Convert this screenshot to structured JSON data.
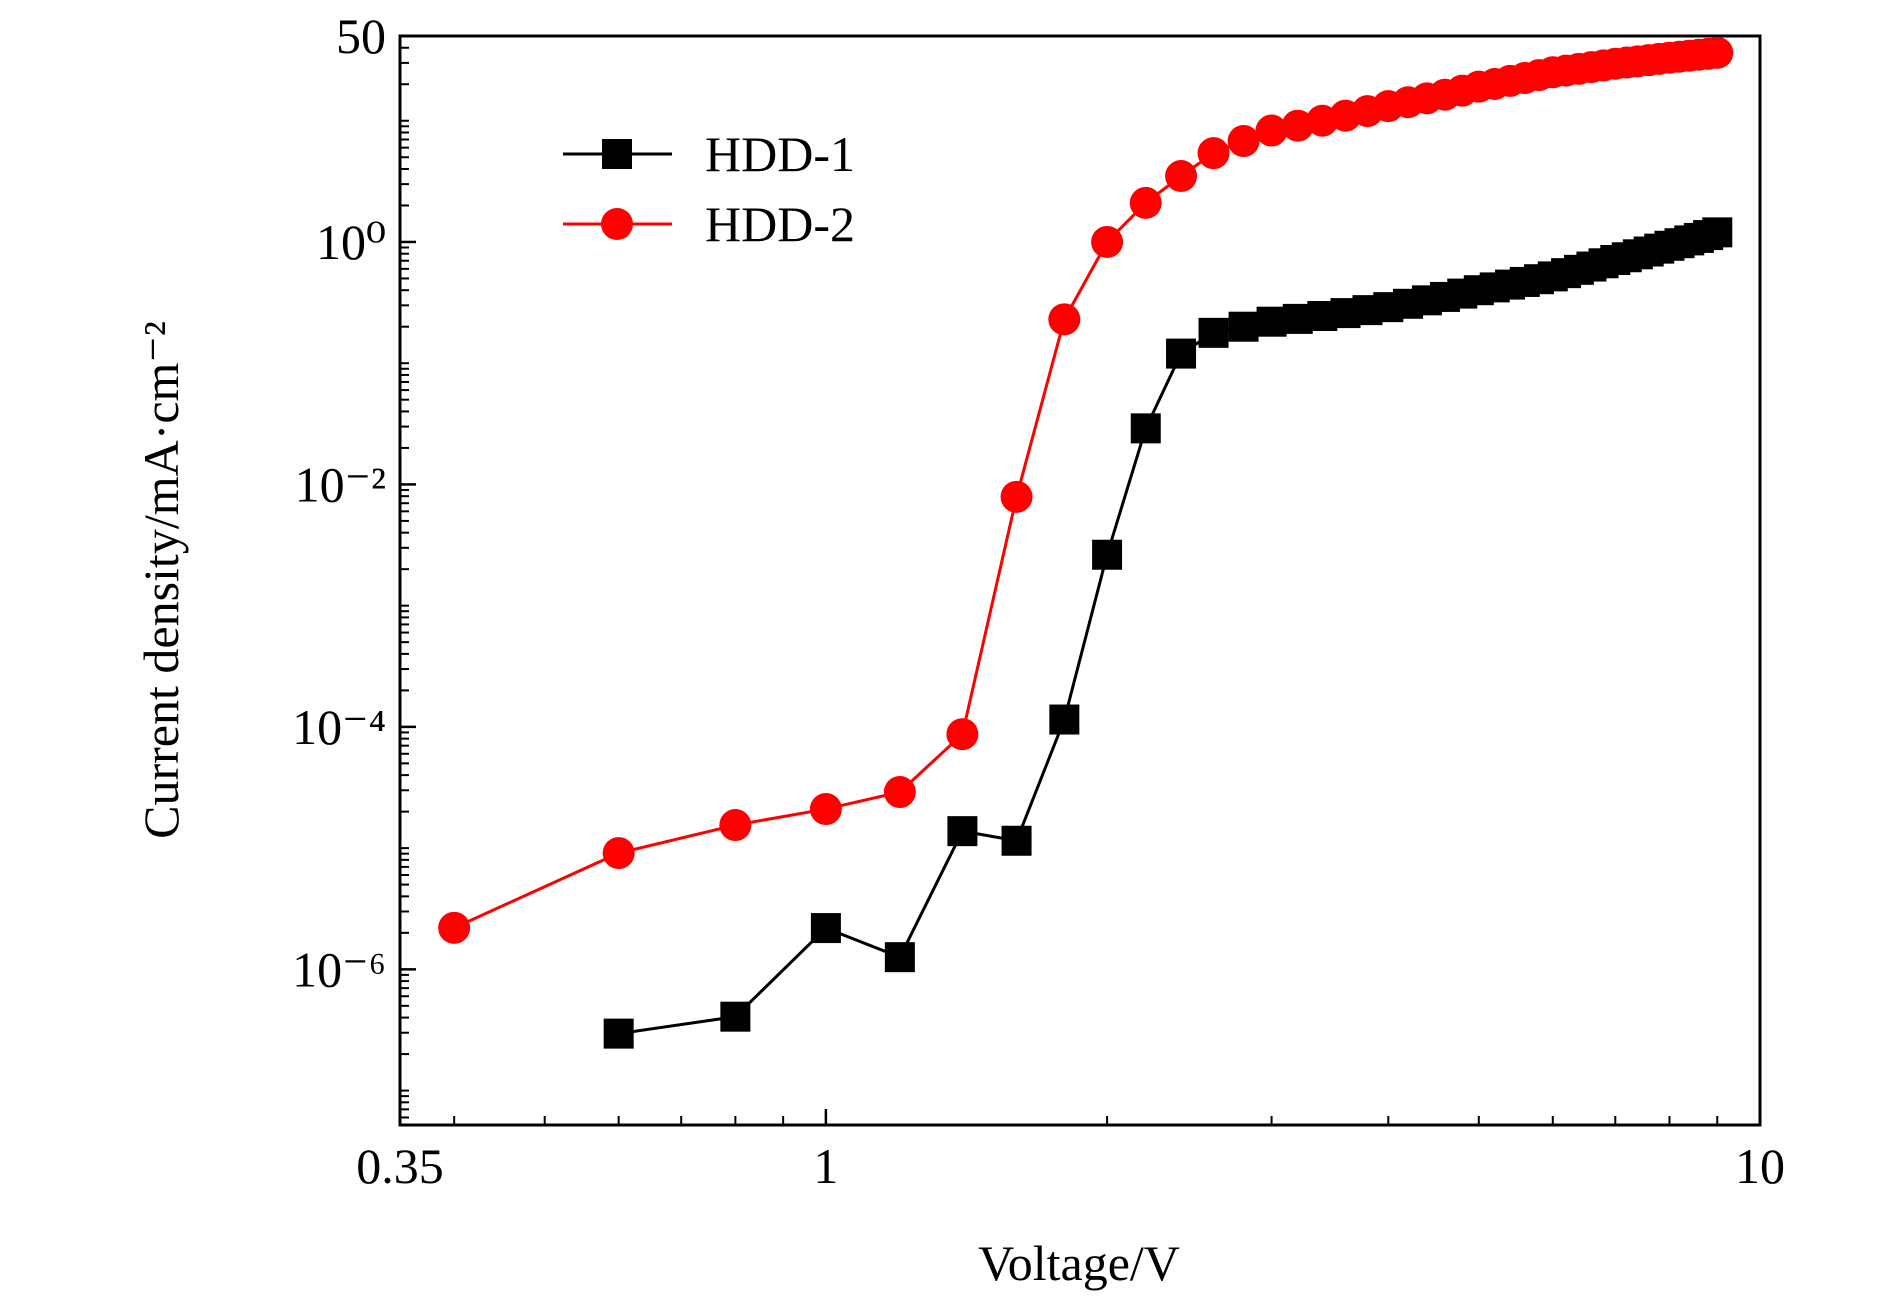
{
  "chart_data": {
    "type": "line",
    "xlabel": "Voltage/V",
    "ylabel": "Current density/mA·cm⁻²",
    "xscale": "log",
    "yscale": "log",
    "xlim": [
      0.35,
      10
    ],
    "ylim": [
      5.2e-08,
      50
    ],
    "xticks": [
      0.35,
      1,
      10
    ],
    "yticks": [
      {
        "value": 1e-06,
        "label": "10⁻⁶"
      },
      {
        "value": 0.0001,
        "label": "10⁻⁴"
      },
      {
        "value": 0.01,
        "label": "10⁻²"
      },
      {
        "value": 1,
        "label": "10⁰"
      },
      50
    ],
    "xminor_ticks": [
      0.4,
      0.5,
      0.6,
      0.7,
      0.8,
      0.9,
      2,
      3,
      4,
      5,
      6,
      7,
      8,
      9
    ],
    "yminor_ticks": [
      6e-08,
      7e-08,
      8e-08,
      9e-08,
      1e-07,
      2e-07,
      3e-07,
      4e-07,
      5e-07,
      6e-07,
      7e-07,
      8e-07,
      9e-07,
      2e-06,
      3e-06,
      4e-06,
      5e-06,
      6e-06,
      7e-06,
      8e-06,
      9e-06,
      1e-05,
      2e-05,
      3e-05,
      4e-05,
      5e-05,
      6e-05,
      7e-05,
      8e-05,
      9e-05,
      0.0002,
      0.0003,
      0.0004,
      0.0005,
      0.0006,
      0.0007,
      0.0008,
      0.0009,
      0.001,
      0.002,
      0.003,
      0.004,
      0.005,
      0.006,
      0.007,
      0.008,
      0.009,
      0.02,
      0.03,
      0.04,
      0.05,
      0.06,
      0.07,
      0.08,
      0.09,
      0.1,
      0.2,
      0.3,
      0.4,
      0.5,
      0.6,
      0.7,
      0.8,
      0.9,
      2,
      3,
      4,
      5,
      6,
      7,
      8,
      9,
      10,
      20,
      30,
      40
    ],
    "legend": "upper left",
    "series": [
      {
        "name": "HDD-1",
        "color": "#000000",
        "marker": "square",
        "x": [
          0.6,
          0.8,
          1.0,
          1.2,
          1.4,
          1.6,
          1.8,
          2.0,
          2.2,
          2.4,
          2.6,
          2.8,
          3.0,
          3.2,
          3.4,
          3.6,
          3.8,
          4.0,
          4.2,
          4.4,
          4.6,
          4.8,
          5.0,
          5.2,
          5.4,
          5.6,
          5.8,
          6.0,
          6.2,
          6.4,
          6.6,
          6.8,
          7.0,
          7.2,
          7.4,
          7.6,
          7.8,
          8.0,
          8.2,
          8.4,
          8.6,
          8.8,
          9.0
        ],
        "values": [
          2.95e-07,
          4.07e-07,
          2.19e-06,
          1.26e-06,
          1.38e-05,
          1.15e-05,
          0.000115,
          0.00263,
          0.029,
          0.12,
          0.178,
          0.2,
          0.22,
          0.232,
          0.245,
          0.259,
          0.274,
          0.29,
          0.309,
          0.33,
          0.352,
          0.375,
          0.4,
          0.422,
          0.445,
          0.468,
          0.493,
          0.52,
          0.553,
          0.589,
          0.627,
          0.667,
          0.71,
          0.748,
          0.791,
          0.834,
          0.881,
          0.93,
          0.977,
          1.03,
          1.08,
          1.14,
          1.2
        ]
      },
      {
        "name": "HDD-2",
        "color": "#ff0000",
        "marker": "circle",
        "x": [
          0.4,
          0.6,
          0.8,
          1.0,
          1.2,
          1.4,
          1.6,
          1.8,
          2.0,
          2.2,
          2.4,
          2.6,
          2.8,
          3.0,
          3.2,
          3.4,
          3.6,
          3.8,
          4.0,
          4.2,
          4.4,
          4.6,
          4.8,
          5.0,
          5.2,
          5.4,
          5.6,
          5.8,
          6.0,
          6.2,
          6.4,
          6.6,
          6.8,
          7.0,
          7.2,
          7.4,
          7.6,
          7.8,
          8.0,
          8.2,
          8.4,
          8.6,
          8.8,
          9.0
        ],
        "values": [
          2.2e-06,
          9.1e-06,
          1.55e-05,
          2.1e-05,
          2.9e-05,
          8.7e-05,
          0.0079,
          0.23,
          1.0,
          2.1,
          3.5,
          5.4,
          6.8,
          8.3,
          9.1,
          10,
          11,
          12,
          13.2,
          14.2,
          15.3,
          16.4,
          17.7,
          19.1,
          20.1,
          21.3,
          22.5,
          23.8,
          25.1,
          25.9,
          26.8,
          27.7,
          28.6,
          29.5,
          30.2,
          30.9,
          31.6,
          32.4,
          33.1,
          33.7,
          34.4,
          35.0,
          35.6,
          36.3
        ]
      }
    ]
  }
}
